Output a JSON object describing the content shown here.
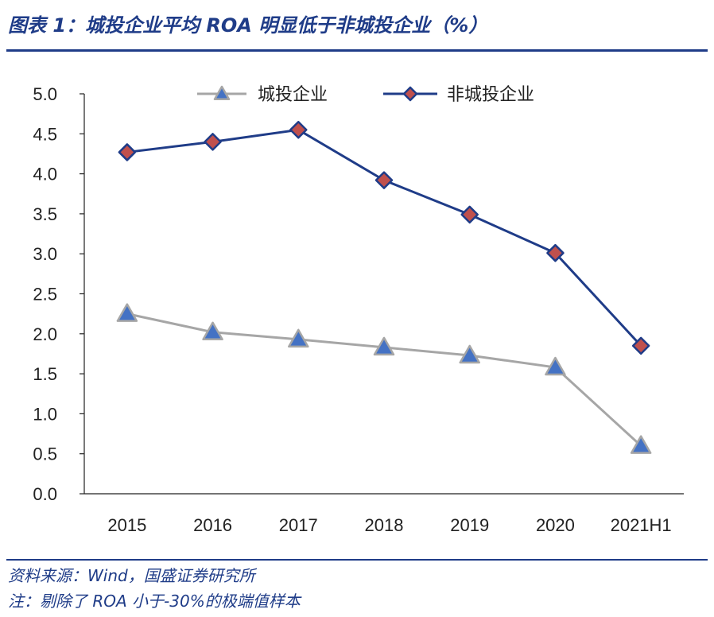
{
  "header": {
    "title": "图表 1：城投企业平均 ROA 明显低于非城投企业（%）"
  },
  "footer": {
    "source": "资料来源：Wind，国盛证券研究所",
    "note": "注：剔除了 ROA 小于-30%的极端值样本"
  },
  "colors": {
    "accent": "#1f3c88",
    "series_chengtou_line": "#a6a6a6",
    "series_chengtou_marker": "#4472c4",
    "series_fei_line": "#1f3c88",
    "series_fei_marker": "#c0504d"
  },
  "chart_data": {
    "type": "line",
    "title": "城投企业平均 ROA 明显低于非城投企业（%）",
    "xlabel": "",
    "ylabel": "",
    "categories": [
      "2015",
      "2016",
      "2017",
      "2018",
      "2019",
      "2020",
      "2021H1"
    ],
    "ylim": [
      0,
      5.0
    ],
    "yticks": [
      "0.0",
      "0.5",
      "1.0",
      "1.5",
      "2.0",
      "2.5",
      "3.0",
      "3.5",
      "4.0",
      "4.5",
      "5.0"
    ],
    "grid": false,
    "legend_position": "top",
    "series": [
      {
        "name": "城投企业",
        "marker": "triangle",
        "values": [
          2.25,
          2.02,
          1.93,
          1.83,
          1.73,
          1.58,
          0.6
        ]
      },
      {
        "name": "非城投企业",
        "marker": "diamond",
        "values": [
          4.27,
          4.4,
          4.55,
          3.92,
          3.49,
          3.01,
          1.85
        ]
      }
    ]
  }
}
